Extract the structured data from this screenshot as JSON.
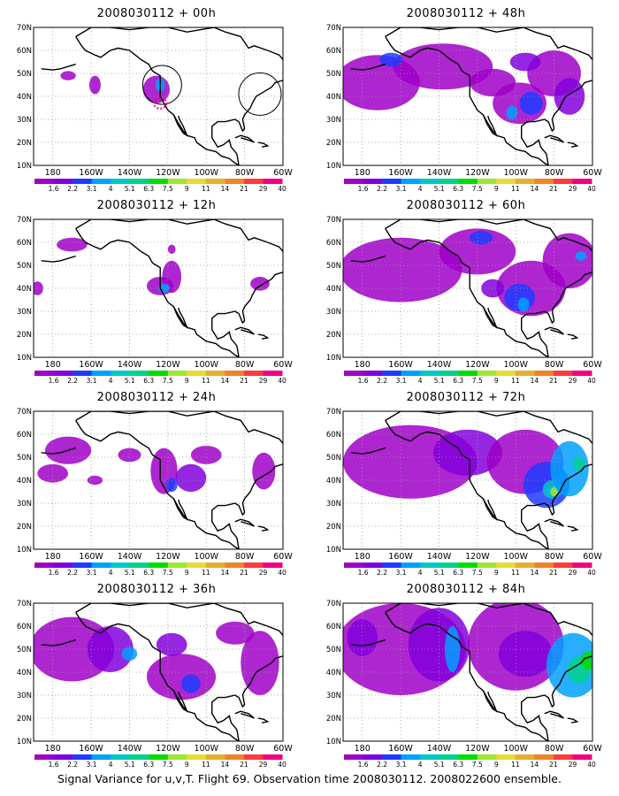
{
  "panels": [
    {
      "title": "2008030112 + 00h"
    },
    {
      "title": "2008030112 + 48h"
    },
    {
      "title": "2008030112 + 12h"
    },
    {
      "title": "2008030112 + 60h"
    },
    {
      "title": "2008030112 + 24h"
    },
    {
      "title": "2008030112 + 72h"
    },
    {
      "title": "2008030112 + 36h"
    },
    {
      "title": "2008030112 + 84h"
    }
  ],
  "map": {
    "lat_labels": [
      "70N",
      "60N",
      "50N",
      "40N",
      "30N",
      "20N",
      "10N"
    ],
    "lon_labels": [
      "180",
      "160W",
      "140W",
      "120W",
      "100W",
      "80W",
      "60W"
    ],
    "lon_range": [
      -190,
      -60
    ],
    "lat_range": [
      10,
      70
    ]
  },
  "colorbar": {
    "labels": [
      "1.6",
      "2.2",
      "3.1",
      "4",
      "5.1",
      "6.3",
      "7.5",
      "9",
      "11",
      "14",
      "21",
      "29",
      "40"
    ],
    "colors": [
      "#a000c8",
      "#8200dc",
      "#1e3cff",
      "#00a0ff",
      "#00c8c8",
      "#00d28c",
      "#00dc00",
      "#a0e632",
      "#e6dc32",
      "#e6af2d",
      "#f08228",
      "#fa3c3c",
      "#f00082"
    ]
  },
  "caption": "Signal Variance for u,v,T. Flight 69. Observation time 2008030112. 2008022600 ensemble."
}
